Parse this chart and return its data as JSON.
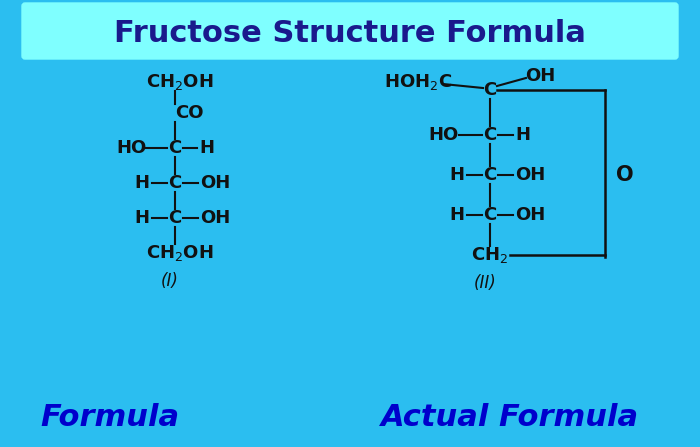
{
  "bg_color": "#2BBEF0",
  "title_box_color": "#7FFFFF",
  "title_text": "Fructose Structure Formula",
  "title_color": "#1A1A8C",
  "title_fontsize": 22,
  "formula_label_color": "#0000CC",
  "formula_label_fontsize": 22,
  "structure_color": "#111111",
  "structure_fontsize": 13,
  "bottom_left": "Formula",
  "bottom_right": "Actual Formula"
}
